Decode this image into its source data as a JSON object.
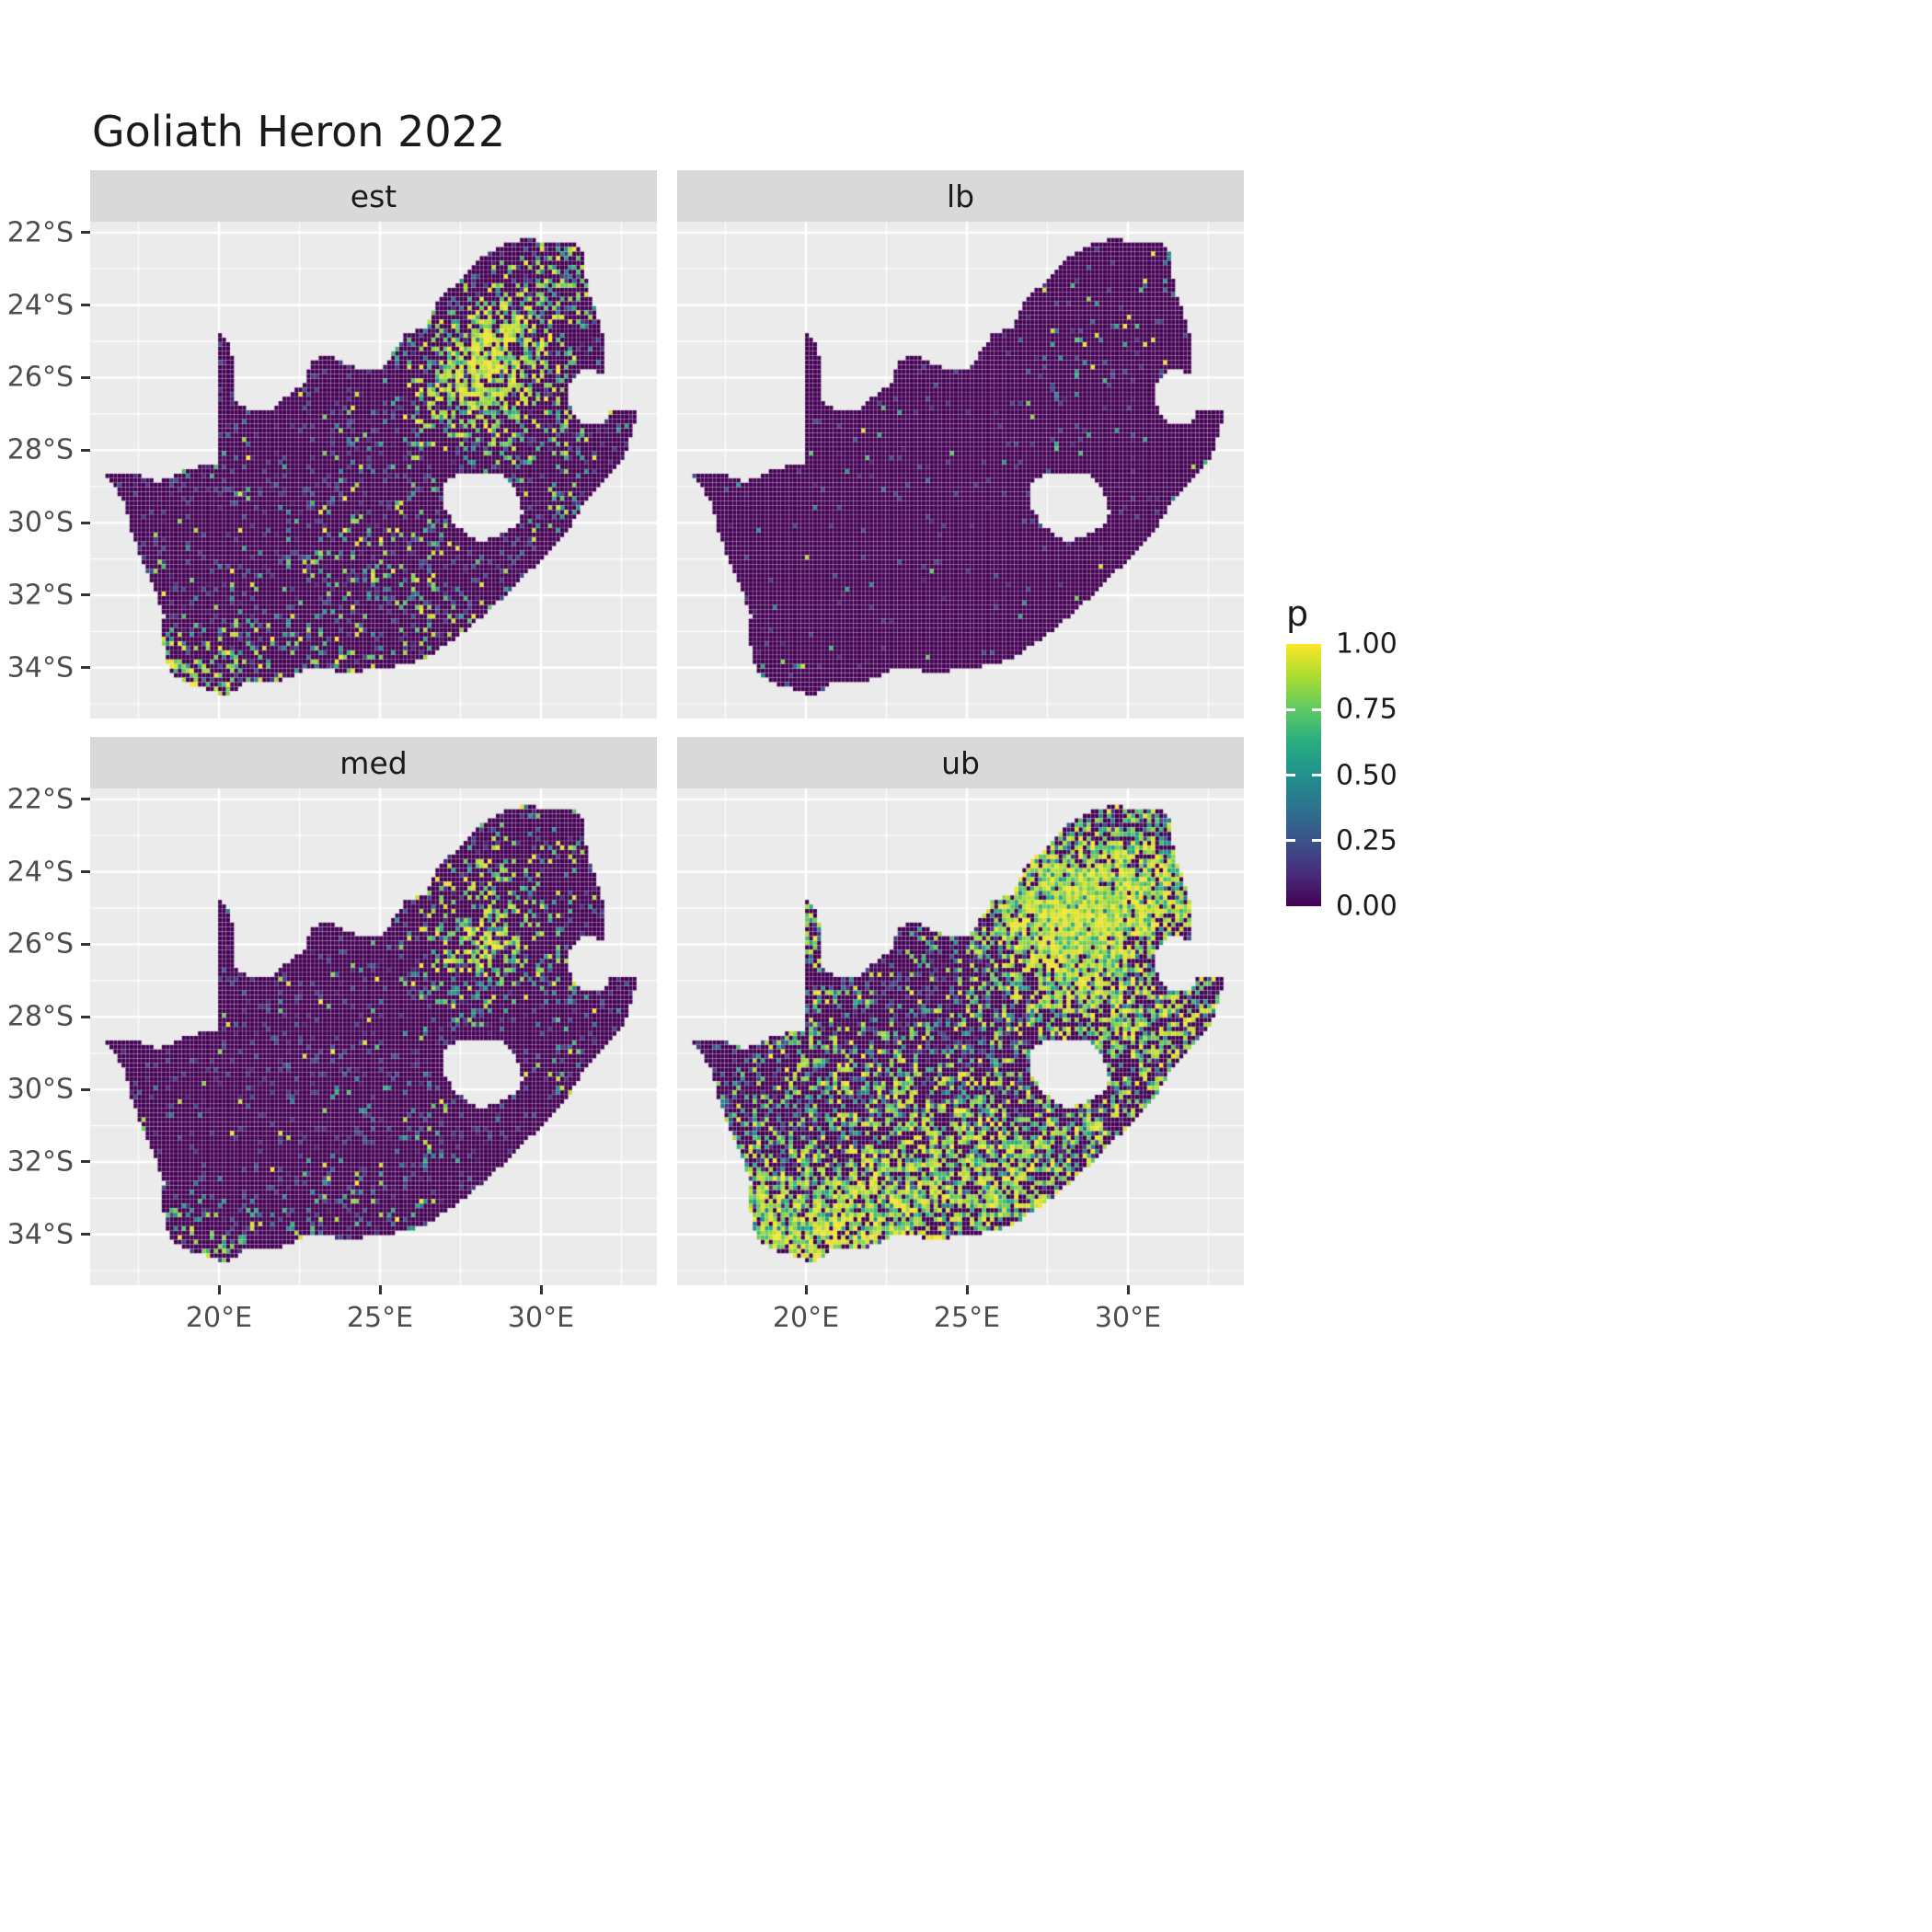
{
  "title": "Goliath Heron 2022",
  "legend": {
    "title": "p",
    "labels": [
      "1.00",
      "0.75",
      "0.50",
      "0.25",
      "0.00"
    ],
    "values": [
      1.0,
      0.75,
      0.5,
      0.25,
      0.0
    ]
  },
  "axes": {
    "x": {
      "labels": [
        "20°E",
        "25°E",
        "30°E"
      ],
      "ticks": [
        20,
        25,
        30
      ],
      "range": [
        16.0,
        33.6
      ]
    },
    "y": {
      "labels": [
        "22°S",
        "24°S",
        "26°S",
        "28°S",
        "30°S",
        "32°S",
        "34°S"
      ],
      "ticks": [
        -22,
        -24,
        -26,
        -28,
        -30,
        -32,
        -34
      ],
      "range": [
        -35.4,
        -21.7
      ]
    },
    "x_minor": [
      17.5,
      22.5,
      27.5,
      32.5
    ],
    "y_minor": [
      -23,
      -25,
      -27,
      -29,
      -31,
      -33,
      -35
    ]
  },
  "colors": {
    "background": "#FFFFFF",
    "panel_background": "#EBEBEB",
    "strip_background": "#D9D9D9",
    "grid_major": "#FFFFFF",
    "grid_minor": "#FFFFFF",
    "title_text": "#1A1A1A",
    "axis_text": "#4D4D4D",
    "tick_mark": "#333333",
    "viridis_stops": [
      "#440154",
      "#472D7B",
      "#3B528B",
      "#2C728E",
      "#21918C",
      "#27AD81",
      "#5EC962",
      "#AADC32",
      "#FDE725"
    ]
  },
  "chart_data": {
    "type": "heatmap",
    "title": "Goliath Heron 2022",
    "facets": [
      "est",
      "lb",
      "med",
      "ub"
    ],
    "value_name": "p",
    "value_limits": [
      0,
      1
    ],
    "value_breaks": [
      0,
      0.25,
      0.5,
      0.75,
      1
    ],
    "palette": "viridis",
    "region": "South Africa (Lesotho and Eswatini excluded)",
    "resolution_deg": 0.125,
    "x_range_deg": [
      16.0,
      33.6
    ],
    "y_range_deg": [
      -35.4,
      -21.7
    ],
    "outline": [
      [
        16.45,
        -28.6
      ],
      [
        17.05,
        -29.45
      ],
      [
        17.35,
        -30.45
      ],
      [
        17.9,
        -31.65
      ],
      [
        18.3,
        -32.55
      ],
      [
        18.2,
        -33.1
      ],
      [
        18.45,
        -34.1
      ],
      [
        19.1,
        -34.45
      ],
      [
        19.9,
        -34.7
      ],
      [
        20.1,
        -34.82
      ],
      [
        20.9,
        -34.4
      ],
      [
        21.9,
        -34.35
      ],
      [
        22.9,
        -34.0
      ],
      [
        24.0,
        -34.15
      ],
      [
        25.0,
        -34.0
      ],
      [
        25.7,
        -33.95
      ],
      [
        26.5,
        -33.7
      ],
      [
        27.45,
        -33.15
      ],
      [
        28.45,
        -32.4
      ],
      [
        29.35,
        -31.6
      ],
      [
        30.15,
        -30.9
      ],
      [
        30.95,
        -30.05
      ],
      [
        31.4,
        -29.4
      ],
      [
        32.05,
        -28.8
      ],
      [
        32.6,
        -28.2
      ],
      [
        32.9,
        -27.35
      ],
      [
        32.95,
        -26.85
      ],
      [
        32.12,
        -26.85
      ],
      [
        31.97,
        -27.32
      ],
      [
        31.35,
        -27.28
      ],
      [
        30.95,
        -26.9
      ],
      [
        30.82,
        -26.3
      ],
      [
        31.1,
        -25.88
      ],
      [
        31.5,
        -25.72
      ],
      [
        31.97,
        -25.95
      ],
      [
        32.02,
        -25.5
      ],
      [
        31.88,
        -24.6
      ],
      [
        31.55,
        -23.8
      ],
      [
        31.3,
        -22.85
      ],
      [
        31.28,
        -22.35
      ],
      [
        30.4,
        -22.3
      ],
      [
        29.6,
        -22.18
      ],
      [
        29.0,
        -22.25
      ],
      [
        28.2,
        -22.65
      ],
      [
        27.55,
        -23.3
      ],
      [
        26.9,
        -23.75
      ],
      [
        26.4,
        -24.62
      ],
      [
        25.8,
        -24.8
      ],
      [
        25.1,
        -25.77
      ],
      [
        24.4,
        -25.78
      ],
      [
        23.9,
        -25.6
      ],
      [
        23.25,
        -25.35
      ],
      [
        22.85,
        -25.6
      ],
      [
        22.7,
        -26.12
      ],
      [
        22.15,
        -26.48
      ],
      [
        21.65,
        -26.88
      ],
      [
        20.95,
        -26.92
      ],
      [
        20.48,
        -26.6
      ],
      [
        20.45,
        -25.6
      ],
      [
        20.3,
        -25.0
      ],
      [
        20.0,
        -24.78
      ],
      [
        19.93,
        -25.3
      ],
      [
        19.93,
        -28.35
      ],
      [
        19.0,
        -28.52
      ],
      [
        18.1,
        -28.9
      ],
      [
        17.4,
        -28.62
      ]
    ],
    "hole": [
      [
        27.05,
        -28.9
      ],
      [
        27.55,
        -28.6
      ],
      [
        28.15,
        -28.7
      ],
      [
        28.65,
        -28.6
      ],
      [
        29.1,
        -28.9
      ],
      [
        29.3,
        -29.3
      ],
      [
        29.45,
        -29.75
      ],
      [
        29.15,
        -30.15
      ],
      [
        28.6,
        -30.4
      ],
      [
        28.1,
        -30.55
      ],
      [
        27.75,
        -30.35
      ],
      [
        27.35,
        -30.05
      ],
      [
        27.0,
        -29.6
      ],
      [
        26.95,
        -29.2
      ]
    ],
    "facet_fields": [
      {
        "label": "est",
        "seed": 11,
        "base": 0.03,
        "dim": 0.1,
        "value_bias": 6,
        "hotspots": [
          [
            28.4,
            -25.7,
            1.3,
            0.55
          ],
          [
            27.6,
            -26.5,
            0.9,
            0.3
          ],
          [
            29.3,
            -24.6,
            1.0,
            0.25
          ],
          [
            31.5,
            -23.6,
            0.8,
            0.18
          ],
          [
            30.3,
            -22.6,
            0.7,
            0.15
          ],
          [
            31.0,
            -27.3,
            0.7,
            0.15
          ],
          [
            30.6,
            -29.4,
            0.6,
            0.18
          ],
          [
            25.6,
            -31.3,
            1.1,
            0.12
          ],
          [
            23.4,
            -31.0,
            1.0,
            0.08
          ],
          [
            18.7,
            -34.2,
            0.7,
            0.35
          ],
          [
            20.4,
            -34.5,
            0.8,
            0.28
          ],
          [
            23.0,
            -34.1,
            0.9,
            0.18
          ],
          [
            25.6,
            -33.9,
            0.8,
            0.15
          ],
          [
            27.8,
            -32.9,
            0.7,
            0.12
          ],
          [
            24.5,
            -28.8,
            1.2,
            0.07
          ],
          [
            21.0,
            -33.0,
            1.0,
            0.06
          ]
        ]
      },
      {
        "label": "lb",
        "seed": 22,
        "base": 0.008,
        "dim": 0.025,
        "value_bias": 6,
        "hotspots": [
          [
            28.4,
            -25.8,
            0.9,
            0.07
          ],
          [
            29.8,
            -24.3,
            0.8,
            0.05
          ],
          [
            31.6,
            -22.8,
            0.6,
            0.08
          ],
          [
            30.9,
            -27.5,
            0.5,
            0.04
          ],
          [
            31.3,
            -29.3,
            0.4,
            0.05
          ]
        ]
      },
      {
        "label": "med",
        "seed": 33,
        "base": 0.022,
        "dim": 0.08,
        "value_bias": 5,
        "hotspots": [
          [
            28.4,
            -25.7,
            1.2,
            0.38
          ],
          [
            27.6,
            -26.5,
            0.9,
            0.2
          ],
          [
            29.3,
            -24.4,
            1.0,
            0.16
          ],
          [
            31.5,
            -23.4,
            0.8,
            0.12
          ],
          [
            30.6,
            -29.4,
            0.6,
            0.12
          ],
          [
            25.6,
            -31.3,
            1.0,
            0.08
          ],
          [
            18.7,
            -34.2,
            0.7,
            0.25
          ],
          [
            20.4,
            -34.5,
            0.8,
            0.2
          ],
          [
            23.0,
            -34.1,
            0.9,
            0.12
          ],
          [
            25.6,
            -33.9,
            0.8,
            0.1
          ],
          [
            31.0,
            -27.3,
            0.7,
            0.1
          ]
        ]
      },
      {
        "label": "ub",
        "seed": 44,
        "base": 0.12,
        "dim": 0.15,
        "value_bias": 5,
        "hotspots": [
          [
            28.2,
            -25.9,
            1.7,
            0.75
          ],
          [
            29.8,
            -24.0,
            1.3,
            0.4
          ],
          [
            31.3,
            -24.8,
            1.0,
            0.35
          ],
          [
            26.9,
            -24.3,
            1.0,
            0.3
          ],
          [
            31.9,
            -27.9,
            0.9,
            0.35
          ],
          [
            30.9,
            -29.8,
            0.8,
            0.3
          ],
          [
            28.6,
            -30.9,
            1.0,
            0.3
          ],
          [
            26.2,
            -31.6,
            1.2,
            0.3
          ],
          [
            24.0,
            -30.6,
            1.4,
            0.22
          ],
          [
            21.5,
            -29.7,
            1.3,
            0.18
          ],
          [
            19.8,
            -29.0,
            1.0,
            0.15
          ],
          [
            20.1,
            -25.4,
            0.6,
            0.45
          ],
          [
            18.6,
            -33.6,
            1.0,
            0.5
          ],
          [
            20.4,
            -34.4,
            1.1,
            0.45
          ],
          [
            22.6,
            -34.2,
            1.2,
            0.4
          ],
          [
            25.2,
            -33.8,
            1.3,
            0.3
          ],
          [
            27.6,
            -33.0,
            1.1,
            0.28
          ],
          [
            23.3,
            -32.5,
            1.3,
            0.2
          ],
          [
            20.6,
            -32.6,
            1.2,
            0.22
          ],
          [
            18.4,
            -32.0,
            0.8,
            0.2
          ],
          [
            29.9,
            -28.2,
            0.9,
            0.2
          ]
        ]
      }
    ]
  }
}
